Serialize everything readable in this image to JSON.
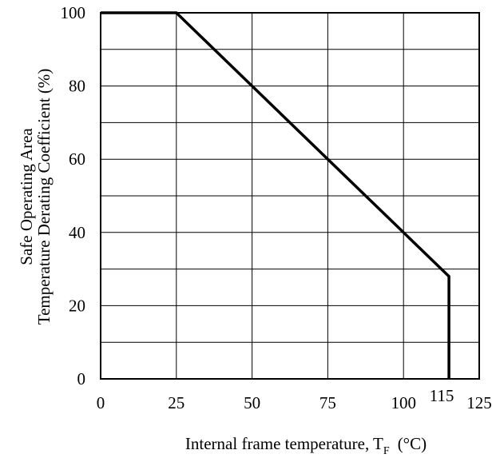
{
  "chart_data": {
    "type": "line",
    "title": "",
    "xlabel": "Internal frame temperature, T",
    "xlabel_subscript": "F",
    "xlabel_unit": "(°C)",
    "ylabel_line1": "Safe Operating Area",
    "ylabel_line2": "Temperature Derating Coefficient (%)",
    "xlim": [
      0,
      125
    ],
    "ylim": [
      0,
      100
    ],
    "x_ticks": [
      0,
      25,
      50,
      75,
      100,
      125
    ],
    "x_tick_labels": [
      "0",
      "25",
      "50",
      "75",
      "100",
      "125"
    ],
    "x_annotation": {
      "value": 115,
      "label": "115"
    },
    "y_ticks": [
      0,
      20,
      40,
      60,
      80,
      100
    ],
    "y_tick_labels": [
      "0",
      "20",
      "40",
      "60",
      "80",
      "100"
    ],
    "grid": true,
    "grid_x": [
      0,
      25,
      50,
      75,
      100,
      125
    ],
    "grid_y": [
      0,
      10,
      20,
      30,
      40,
      50,
      60,
      70,
      80,
      90,
      100
    ],
    "series": [
      {
        "x": [
          0,
          25,
          115,
          115
        ],
        "y": [
          100,
          100,
          28,
          0
        ],
        "color": "#000000"
      }
    ]
  }
}
